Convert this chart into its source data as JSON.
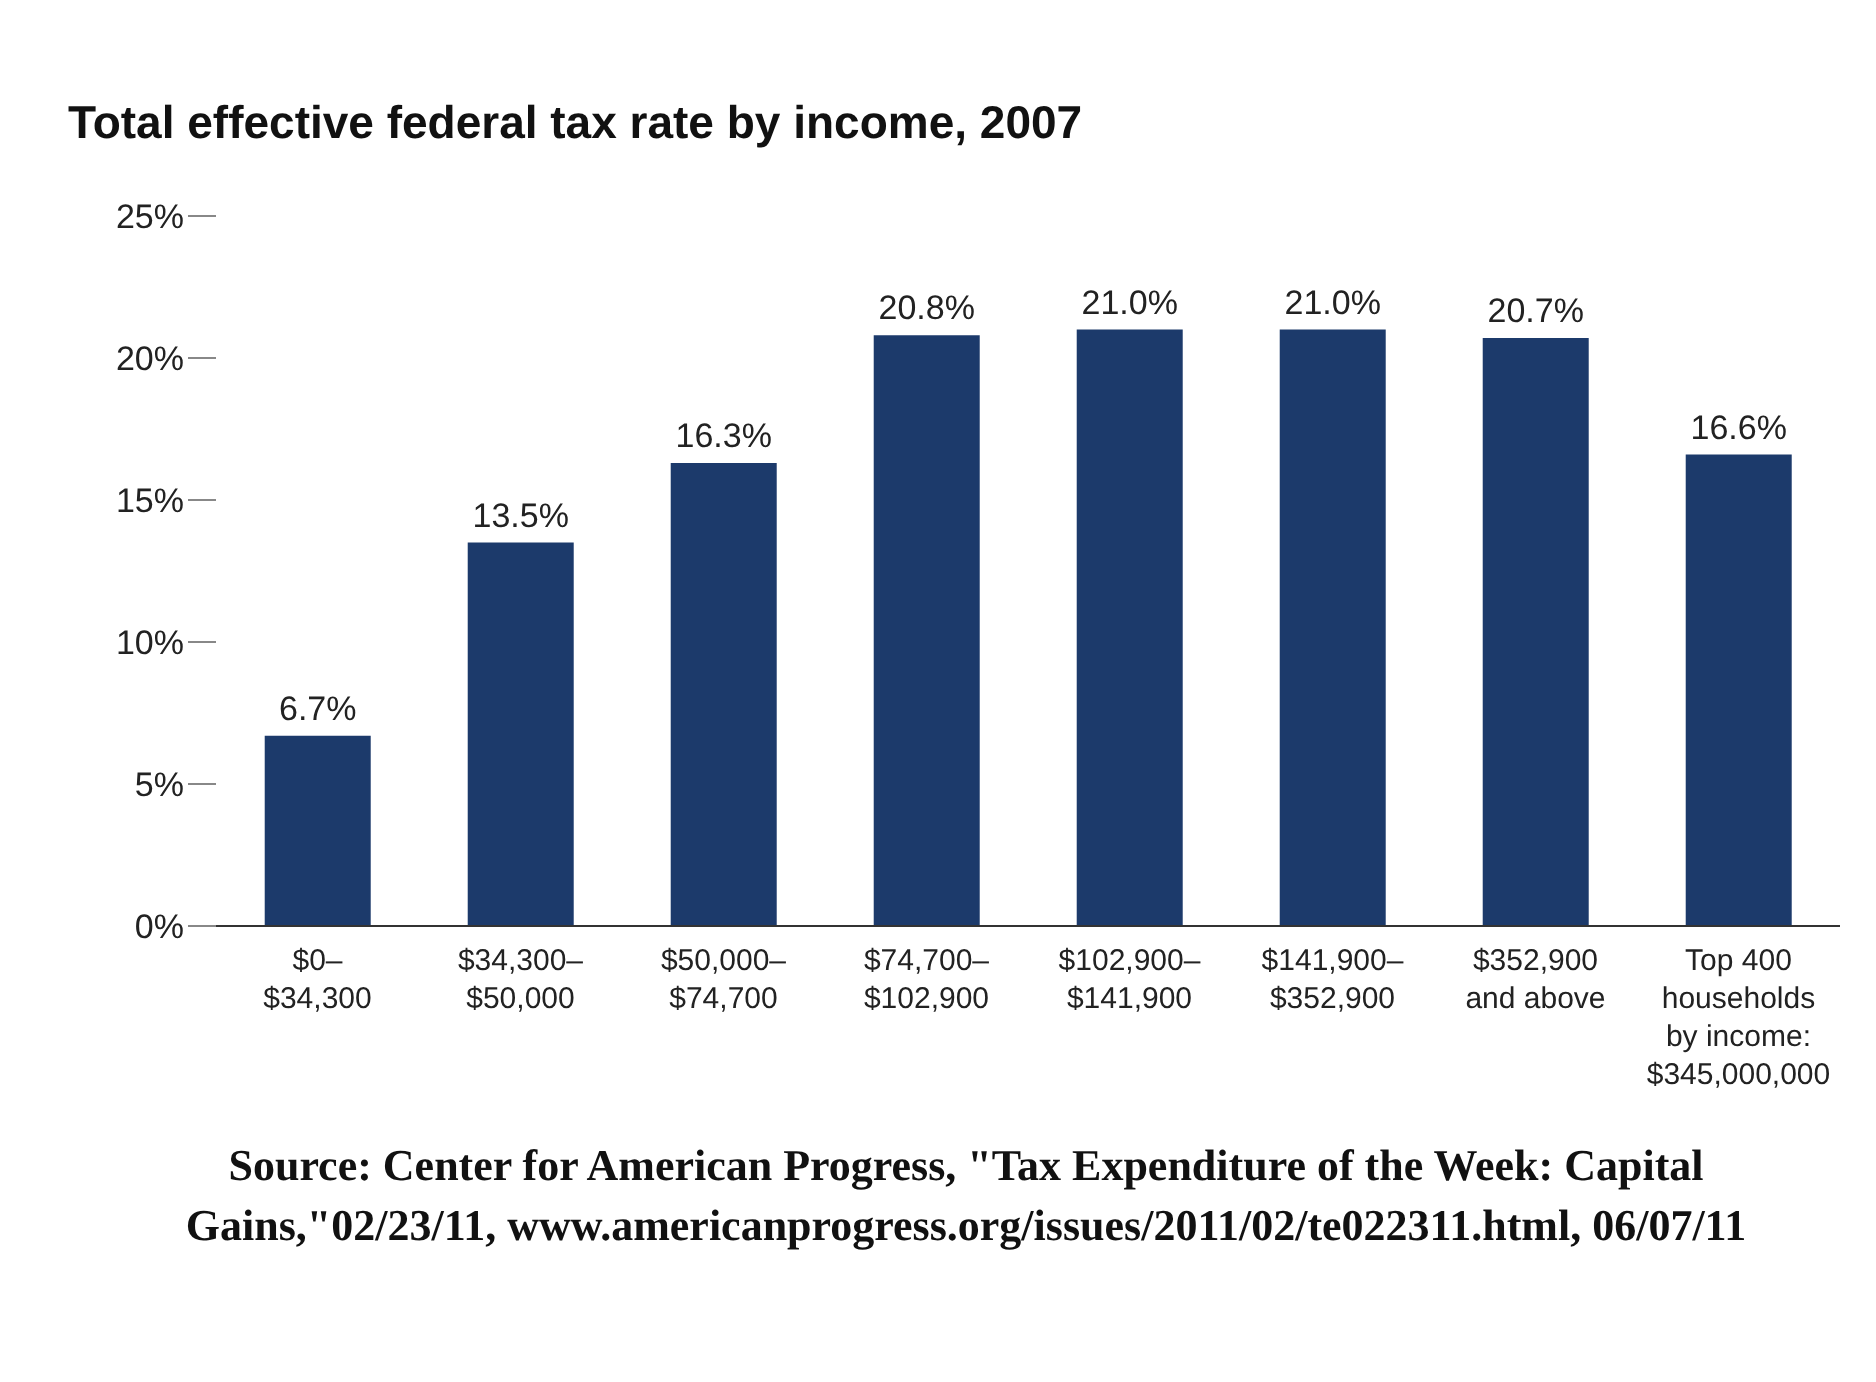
{
  "chart_data": {
    "type": "bar",
    "title": "Total effective federal tax rate by income, 2007",
    "categories": [
      "$0–\n$34,300",
      "$34,300–\n$50,000",
      "$50,000–\n$74,700",
      "$74,700–\n$102,900",
      "$102,900–\n$141,900",
      "$141,900–\n$352,900",
      "$352,900\nand above",
      "Top 400\nhouseholds\nby income:\n$345,000,000"
    ],
    "values": [
      6.7,
      13.5,
      16.3,
      20.8,
      21.0,
      21.0,
      20.7,
      16.6
    ],
    "value_labels": [
      "6.7%",
      "13.5%",
      "16.3%",
      "20.8%",
      "21.0%",
      "21.0%",
      "20.7%",
      "16.6%"
    ],
    "color": "#1c3a6b",
    "ylim": [
      0,
      25
    ],
    "yticks": [
      {
        "value": 0,
        "label": "0%"
      },
      {
        "value": 5,
        "label": "5%"
      },
      {
        "value": 10,
        "label": "10%"
      },
      {
        "value": 15,
        "label": "15%"
      },
      {
        "value": 20,
        "label": "20%"
      },
      {
        "value": 25,
        "label": "25%"
      }
    ],
    "grid": false,
    "legend": false,
    "annotations": [
      "Source: Center for American Progress, \"Tax Expenditure of the Week: Capital Gains,\"02/23/11, www.americanprogress.org/issues/2011/02/te022311.html, 06/07/11"
    ]
  }
}
